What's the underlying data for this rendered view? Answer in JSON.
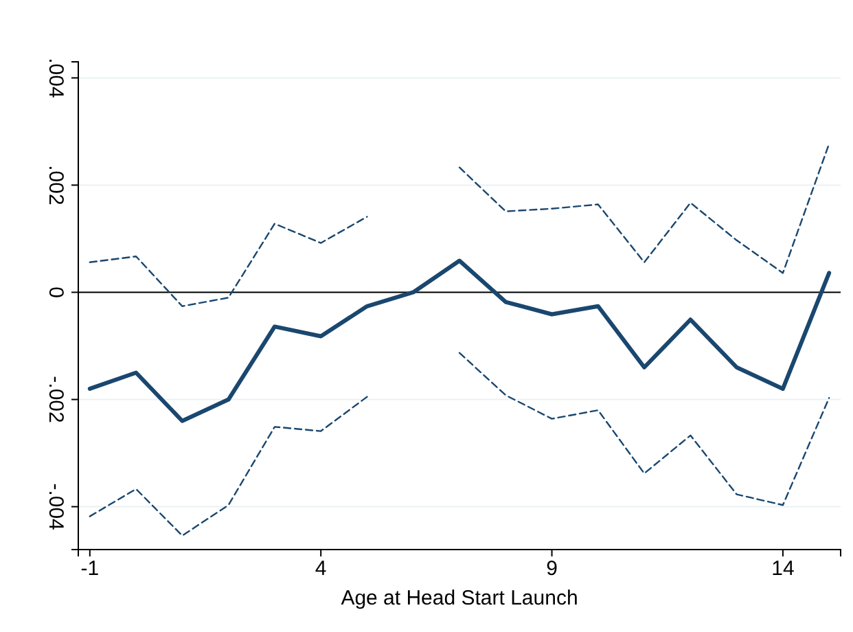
{
  "chart_data": {
    "type": "line",
    "xlabel": "Age at Head Start Launch",
    "x": [
      -1,
      0,
      1,
      2,
      3,
      4,
      5,
      6,
      7,
      8,
      9,
      10,
      11,
      12,
      13,
      14,
      15
    ],
    "series": [
      {
        "color": "#1a476f",
        "values": [
          -0.0018,
          -0.0015,
          -0.0024,
          -0.002,
          -0.00064,
          -0.00082,
          -0.00026,
          0,
          0.00059,
          -0.00018,
          -0.00041,
          -0.00026,
          -0.0014,
          -0.00051,
          -0.0014,
          -0.0018,
          0.00036
        ],
        "line_style": "solid"
      },
      {
        "color": "#1a476f",
        "values": [
          0.00056,
          0.00067,
          -0.00026,
          -0.0001,
          0.00128,
          0.00092,
          0.00141,
          null,
          0.00233,
          0.00151,
          0.00156,
          0.00164,
          0.00056,
          0.00167,
          0.00097,
          0.00036,
          0.00277
        ],
        "line_style": "dashed"
      },
      {
        "color": "#1a476f",
        "values": [
          -0.00418,
          -0.00367,
          -0.00454,
          -0.00397,
          -0.00251,
          -0.00259,
          -0.00195,
          null,
          -0.00113,
          -0.00192,
          -0.00236,
          -0.0022,
          -0.00338,
          -0.00267,
          -0.00377,
          -0.00397,
          -0.00197
        ],
        "line_style": "dashed"
      }
    ],
    "xlim": [
      -1.25,
      15.25
    ],
    "xticks": [
      -1,
      4,
      9,
      14
    ],
    "ylim": [
      -0.0048,
      0.0043
    ],
    "yticks": [
      {
        "value": -0.004,
        "label": "-.004"
      },
      {
        "value": -0.002,
        "label": "-.002"
      },
      {
        "value": 0,
        "label": "0"
      },
      {
        "value": 0.002,
        "label": ".002"
      },
      {
        "value": 0.004,
        "label": ".004"
      }
    ],
    "ref_lines": [
      {
        "axis": "y",
        "value": 0,
        "color": "#000000",
        "line_style": "solid"
      }
    ],
    "grid": "y",
    "marker": "none"
  }
}
